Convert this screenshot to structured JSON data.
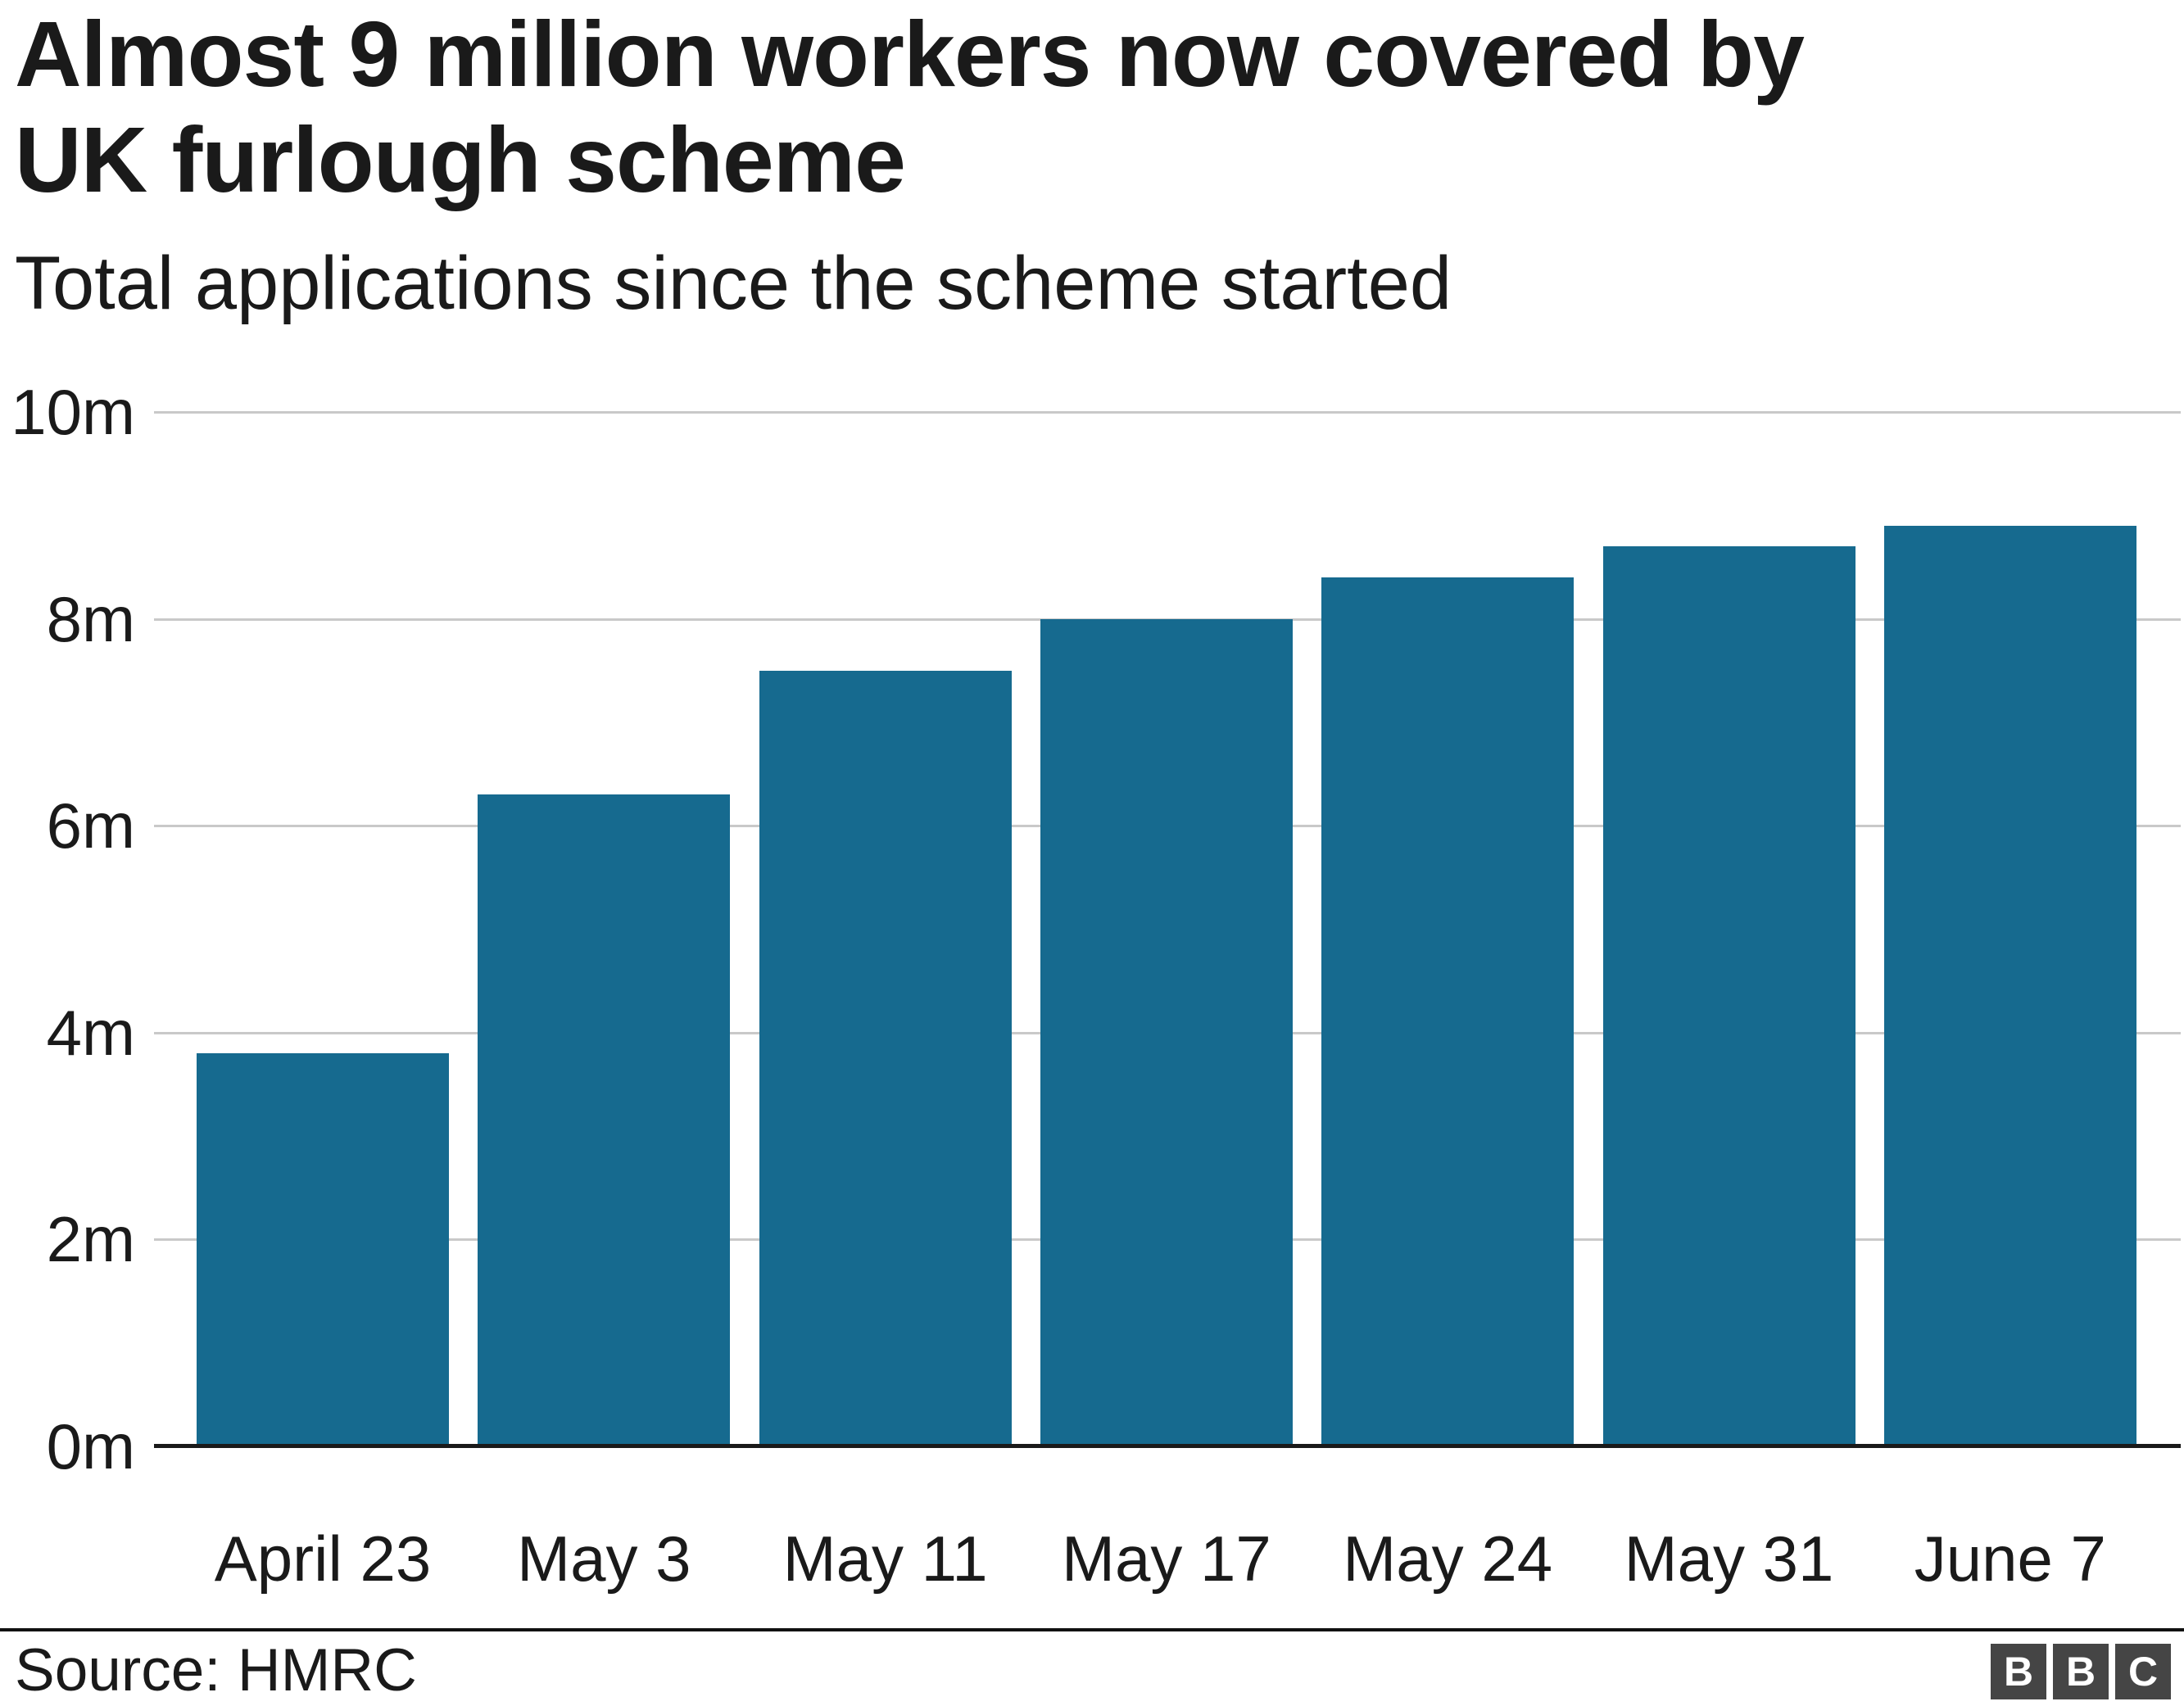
{
  "header": {
    "title": "Almost 9 million workers now covered by\nUK furlough scheme",
    "subtitle": "Total applications since the scheme started"
  },
  "footer": {
    "source_label": "Source: HMRC",
    "logo_letters": [
      "B",
      "B",
      "C"
    ]
  },
  "colors": {
    "bar": "#166A8F",
    "grid": "#c9c9c9",
    "axis_line": "#1a1a1a",
    "text": "#1a1a1a",
    "logo_background": "#454545"
  },
  "chart_data": {
    "type": "bar",
    "title": "Almost 9 million workers now covered by UK furlough scheme",
    "subtitle": "Total applications since the scheme started",
    "categories": [
      "April 23",
      "May 3",
      "May 11",
      "May 17",
      "May 24",
      "May 31",
      "June 7"
    ],
    "values": [
      3.8,
      6.3,
      7.5,
      8.0,
      8.4,
      8.7,
      8.9
    ],
    "unit": "million applications",
    "xlabel": "",
    "ylabel": "",
    "y_ticks": [
      "0m",
      "2m",
      "4m",
      "6m",
      "8m",
      "10m"
    ],
    "y_tick_values": [
      0,
      2,
      4,
      6,
      8,
      10
    ],
    "ylim": [
      0,
      10
    ],
    "grid": true,
    "legend": false,
    "source": "HMRC"
  }
}
